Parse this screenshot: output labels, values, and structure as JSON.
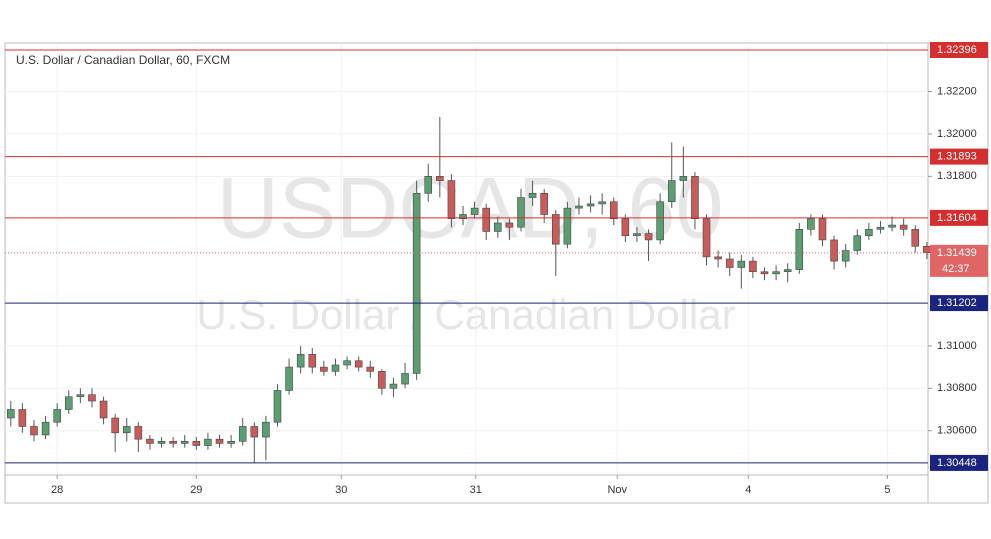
{
  "chart_data": {
    "type": "candlestick",
    "title": "U.S. Dollar / Canadian Dollar, 60, FXCM",
    "watermark": "USDCAD, 60",
    "watermark_subtitle": "U.S. Dollar / Canadian Dollar",
    "up_color": "#5b9e72",
    "down_color": "#c95b5b",
    "x": [
      0,
      1,
      2,
      3,
      4,
      5,
      6,
      7,
      8,
      9,
      10,
      11,
      12,
      13,
      14,
      15,
      16,
      17,
      18,
      19,
      20,
      21,
      22,
      23,
      24,
      25,
      26,
      27,
      28,
      29,
      30,
      31,
      32,
      33,
      34,
      35,
      36,
      37,
      38,
      39,
      40,
      41,
      42,
      43,
      44,
      45,
      46,
      47,
      48,
      49,
      50,
      51,
      52,
      53,
      54,
      55,
      56,
      57,
      58,
      59,
      60,
      61,
      62,
      63,
      64,
      65,
      66,
      67,
      68,
      69,
      70,
      71,
      72,
      73,
      74,
      75,
      76,
      77,
      78,
      79
    ],
    "open": [
      1.3066,
      1.307,
      1.3062,
      1.3058,
      1.3064,
      1.307,
      1.3076,
      1.3077,
      1.3074,
      1.3066,
      1.3059,
      1.3062,
      1.3056,
      1.3054,
      1.3055,
      1.3054,
      1.3055,
      1.3053,
      1.3056,
      1.3054,
      1.3055,
      1.3062,
      1.3057,
      1.3064,
      1.3079,
      1.309,
      1.3096,
      1.309,
      1.3088,
      1.3091,
      1.3093,
      1.309,
      1.3088,
      1.308,
      1.3082,
      1.3087,
      1.3172,
      1.318,
      1.3178,
      1.316,
      1.3162,
      1.3165,
      1.3154,
      1.3158,
      1.3156,
      1.317,
      1.3172,
      1.3162,
      1.3148,
      1.3165,
      1.3166,
      1.3167,
      1.3168,
      1.316,
      1.3152,
      1.3153,
      1.315,
      1.3168,
      1.3178,
      1.318,
      1.316,
      1.3142,
      1.3141,
      1.3137,
      1.314,
      1.3135,
      1.3134,
      1.3135,
      1.3136,
      1.3155,
      1.316,
      1.315,
      1.314,
      1.3145,
      1.3152,
      1.3155,
      1.3156,
      1.3157,
      1.3155,
      1.3147
    ],
    "high": [
      1.3074,
      1.3073,
      1.3065,
      1.3067,
      1.3073,
      1.3079,
      1.308,
      1.308,
      1.3076,
      1.3068,
      1.3066,
      1.3064,
      1.3058,
      1.3057,
      1.3057,
      1.3058,
      1.3057,
      1.3059,
      1.3058,
      1.3058,
      1.3066,
      1.3064,
      1.3067,
      1.3082,
      1.3094,
      1.31,
      1.3099,
      1.3093,
      1.3094,
      1.3095,
      1.3095,
      1.3093,
      1.3089,
      1.3085,
      1.3092,
      1.3178,
      1.3186,
      1.3208,
      1.3181,
      1.3166,
      1.3168,
      1.3167,
      1.3161,
      1.316,
      1.3174,
      1.3178,
      1.3174,
      1.3164,
      1.3168,
      1.317,
      1.3171,
      1.3172,
      1.317,
      1.3162,
      1.3156,
      1.3155,
      1.3172,
      1.3196,
      1.3194,
      1.3182,
      1.3162,
      1.3145,
      1.3144,
      1.3143,
      1.3142,
      1.3137,
      1.3138,
      1.3139,
      1.3158,
      1.3162,
      1.3162,
      1.3152,
      1.3148,
      1.3155,
      1.3158,
      1.3159,
      1.3161,
      1.316,
      1.3157,
      1.3149
    ],
    "low": [
      1.3062,
      1.3059,
      1.3055,
      1.3056,
      1.3062,
      1.3068,
      1.3073,
      1.3071,
      1.3063,
      1.305,
      1.3055,
      1.305,
      1.3051,
      1.3052,
      1.3052,
      1.3052,
      1.3051,
      1.3051,
      1.3052,
      1.3052,
      1.3053,
      1.3045,
      1.3046,
      1.3062,
      1.3077,
      1.3087,
      1.3087,
      1.3086,
      1.3086,
      1.3089,
      1.3088,
      1.3085,
      1.3077,
      1.3076,
      1.308,
      1.3084,
      1.3168,
      1.317,
      1.3156,
      1.3157,
      1.316,
      1.315,
      1.3151,
      1.315,
      1.3154,
      1.3166,
      1.3158,
      1.3133,
      1.3146,
      1.3162,
      1.3163,
      1.3162,
      1.3157,
      1.3149,
      1.3149,
      1.314,
      1.3148,
      1.3165,
      1.317,
      1.3155,
      1.3138,
      1.3137,
      1.3133,
      1.3127,
      1.3132,
      1.3131,
      1.3131,
      1.313,
      1.3134,
      1.3152,
      1.3147,
      1.3136,
      1.3137,
      1.3143,
      1.315,
      1.3153,
      1.3154,
      1.3152,
      1.3144,
      1.3141
    ],
    "close": [
      1.307,
      1.3062,
      1.3058,
      1.3064,
      1.307,
      1.3076,
      1.3077,
      1.3074,
      1.3066,
      1.3059,
      1.3062,
      1.3056,
      1.3054,
      1.3055,
      1.3054,
      1.3055,
      1.3053,
      1.3056,
      1.3054,
      1.3055,
      1.3062,
      1.3057,
      1.3064,
      1.3079,
      1.309,
      1.3096,
      1.309,
      1.3088,
      1.3091,
      1.3093,
      1.309,
      1.3088,
      1.308,
      1.3082,
      1.3087,
      1.3172,
      1.318,
      1.3178,
      1.316,
      1.3162,
      1.3165,
      1.3154,
      1.3158,
      1.3156,
      1.317,
      1.3172,
      1.3162,
      1.3148,
      1.3165,
      1.3166,
      1.3167,
      1.3168,
      1.316,
      1.3152,
      1.3153,
      1.315,
      1.3168,
      1.3178,
      1.318,
      1.316,
      1.3142,
      1.3141,
      1.3137,
      1.314,
      1.3135,
      1.3134,
      1.3135,
      1.3136,
      1.3155,
      1.316,
      1.315,
      1.314,
      1.3145,
      1.3152,
      1.3155,
      1.3156,
      1.3157,
      1.3155,
      1.3147,
      1.3144
    ],
    "xlim": [
      -0.5,
      79.1
    ],
    "xticks": [
      {
        "value": 4,
        "label": "28"
      },
      {
        "value": 16,
        "label": "29"
      },
      {
        "value": 28.5,
        "label": "30"
      },
      {
        "value": 40.1,
        "label": "31"
      },
      {
        "value": 52.3,
        "label": "Nov"
      },
      {
        "value": 63.6,
        "label": "4"
      },
      {
        "value": 75.6,
        "label": "5"
      }
    ],
    "ylim": [
      1.30391,
      1.32429
    ],
    "yticks": [
      {
        "value": 1.322,
        "label": "1.32200"
      },
      {
        "value": 1.32,
        "label": "1.32000"
      },
      {
        "value": 1.318,
        "label": "1.31800"
      },
      {
        "value": 1.31,
        "label": "1.31000"
      },
      {
        "value": 1.308,
        "label": "1.30800"
      },
      {
        "value": 1.306,
        "label": "1.30600"
      }
    ],
    "levels": [
      {
        "value": 1.32396,
        "label": "1.32396",
        "color": "#d32f2f"
      },
      {
        "value": 1.31893,
        "label": "1.31893",
        "color": "#d32f2f"
      },
      {
        "value": 1.31604,
        "label": "1.31604",
        "color": "#d32f2f"
      },
      {
        "value": 1.31202,
        "label": "1.31202",
        "color": "#1a237e"
      },
      {
        "value": 1.30448,
        "label": "1.30448",
        "color": "#1a237e"
      }
    ],
    "current_price": {
      "value": 1.31439,
      "label": "1.31439",
      "countdown": "42:37",
      "color": "#e06666"
    }
  }
}
